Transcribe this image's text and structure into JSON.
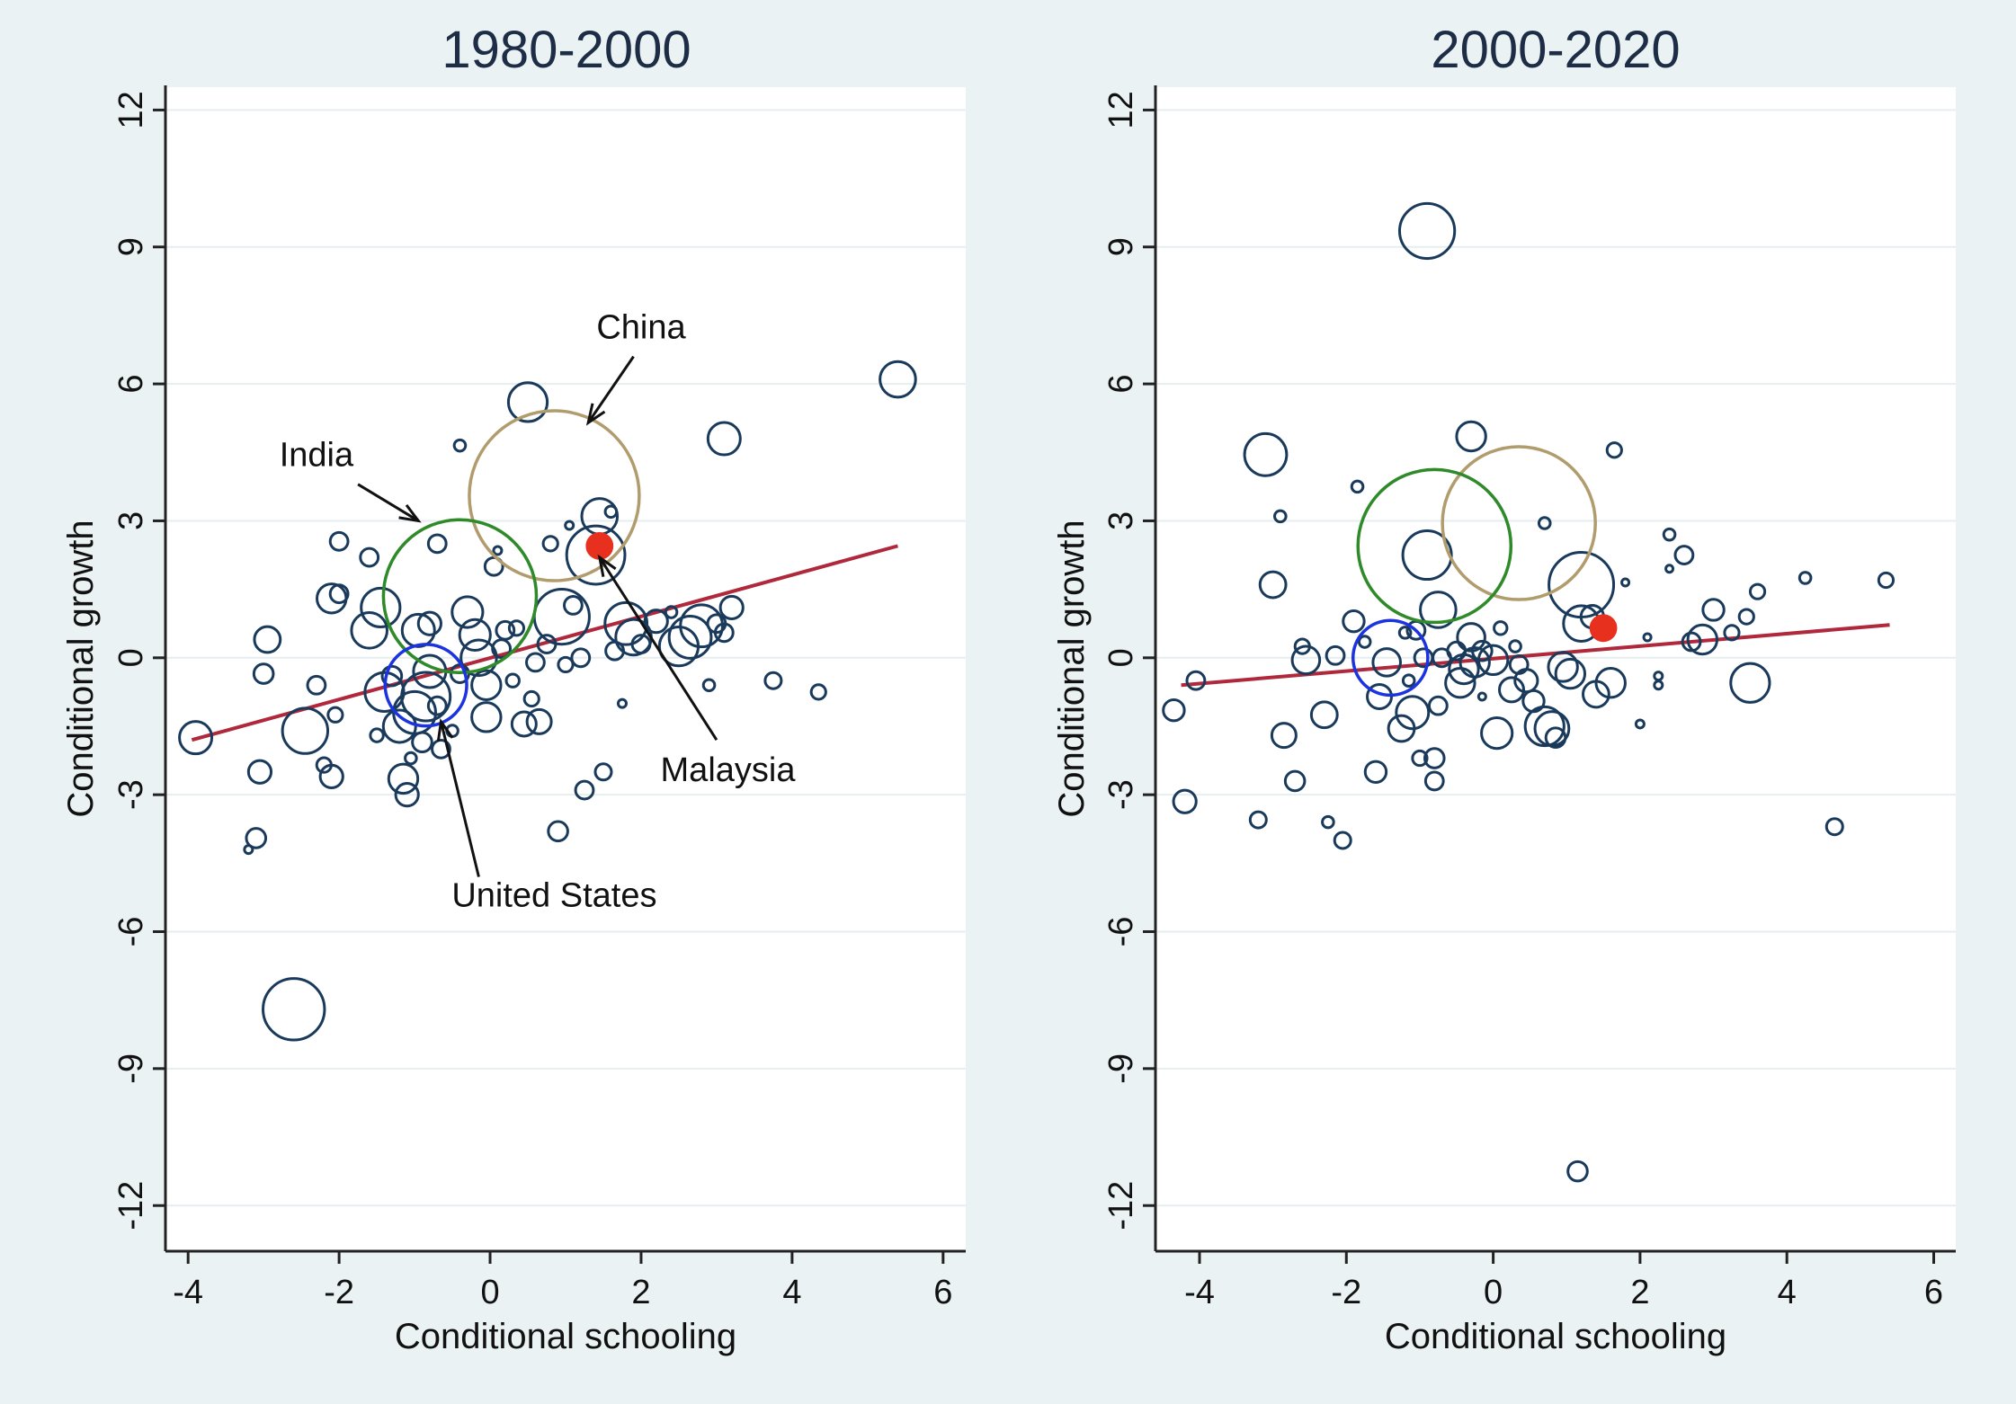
{
  "colors": {
    "background": "#eaf2f3",
    "plot_bg": "#ffffff",
    "grid": "#e6eef0",
    "marker": "#1a3a5c",
    "fit": "#b0283c",
    "china": "#b19c6e",
    "india": "#2f8a2a",
    "united_states": "#1c33e0",
    "malaysia": "#e8301e",
    "title": "#1e2d46"
  },
  "chart_data": [
    {
      "type": "scatter",
      "title": "1980-2000",
      "xlabel": "Conditional schooling",
      "ylabel": "Conditional growth",
      "xlim": [
        -4.3,
        6.3
      ],
      "ylim": [
        -13,
        12.5
      ],
      "xticks": [
        -4,
        -2,
        0,
        2,
        4,
        6
      ],
      "yticks": [
        -12,
        -9,
        -6,
        -3,
        0,
        3,
        6,
        9,
        12
      ],
      "xtick_labels": [
        "-4",
        "-2",
        "0",
        "2",
        "4",
        "6"
      ],
      "ytick_labels": [
        "-12",
        "-9",
        "-6",
        "-3",
        "0",
        "3",
        "6",
        "9",
        "12"
      ],
      "grid": true,
      "fit_line": {
        "x": [
          -3.95,
          5.4
        ],
        "y": [
          -1.8,
          2.45
        ]
      },
      "points": [
        [
          -3.9,
          -1.75,
          1.0
        ],
        [
          -3.2,
          -4.2,
          0.25
        ],
        [
          -3.1,
          -3.95,
          0.6
        ],
        [
          -3.05,
          -2.5,
          0.7
        ],
        [
          -3.0,
          -0.35,
          0.6
        ],
        [
          -2.95,
          0.4,
          0.8
        ],
        [
          -2.6,
          -7.7,
          1.9
        ],
        [
          -2.45,
          -1.6,
          1.4
        ],
        [
          -2.3,
          -0.6,
          0.55
        ],
        [
          -2.2,
          -2.35,
          0.45
        ],
        [
          -2.1,
          -2.6,
          0.7
        ],
        [
          -2.1,
          1.3,
          0.9
        ],
        [
          -2.05,
          -1.25,
          0.45
        ],
        [
          -2.0,
          1.4,
          0.55
        ],
        [
          -2.0,
          2.55,
          0.55
        ],
        [
          -1.6,
          2.2,
          0.55
        ],
        [
          -1.6,
          0.6,
          1.1
        ],
        [
          -1.5,
          -1.7,
          0.4
        ],
        [
          -1.4,
          -0.75,
          1.2
        ],
        [
          -1.45,
          1.1,
          1.2
        ],
        [
          -1.3,
          -0.4,
          0.6
        ],
        [
          -1.2,
          -1.5,
          1.0
        ],
        [
          -1.15,
          -2.65,
          0.9
        ],
        [
          -1.1,
          -3.0,
          0.7
        ],
        [
          -1.05,
          -2.2,
          0.35
        ],
        [
          -1.0,
          -1.2,
          1.3
        ],
        [
          -0.95,
          0.6,
          1.0
        ],
        [
          -0.9,
          -1.85,
          0.6
        ],
        [
          -0.85,
          -0.85,
          1.5
        ],
        [
          -0.8,
          -0.3,
          1.0
        ],
        [
          -0.8,
          0.75,
          0.7
        ],
        [
          -0.7,
          2.5,
          0.55
        ],
        [
          -0.7,
          -1.05,
          0.55
        ],
        [
          -0.65,
          -2.0,
          0.55
        ],
        [
          -0.5,
          -1.6,
          0.35
        ],
        [
          -0.4,
          -0.35,
          0.55
        ],
        [
          -0.4,
          4.65,
          0.35
        ],
        [
          -0.3,
          1.0,
          0.95
        ],
        [
          -0.2,
          0.5,
          0.95
        ],
        [
          -0.15,
          0.0,
          1.1
        ],
        [
          -0.05,
          -0.6,
          0.9
        ],
        [
          -0.05,
          -1.3,
          0.9
        ],
        [
          0.05,
          2.0,
          0.55
        ],
        [
          0.1,
          2.35,
          0.25
        ],
        [
          0.15,
          0.2,
          0.55
        ],
        [
          0.2,
          0.6,
          0.55
        ],
        [
          0.3,
          -0.5,
          0.4
        ],
        [
          0.35,
          0.65,
          0.45
        ],
        [
          0.45,
          -1.45,
          0.75
        ],
        [
          0.5,
          5.6,
          1.2
        ],
        [
          0.55,
          -0.9,
          0.45
        ],
        [
          0.6,
          -0.1,
          0.55
        ],
        [
          0.65,
          -1.4,
          0.75
        ],
        [
          0.75,
          0.3,
          0.55
        ],
        [
          0.8,
          2.5,
          0.45
        ],
        [
          0.95,
          0.9,
          1.7
        ],
        [
          0.9,
          -3.8,
          0.6
        ],
        [
          1.0,
          -0.15,
          0.45
        ],
        [
          1.05,
          2.9,
          0.25
        ],
        [
          1.1,
          1.15,
          0.55
        ],
        [
          1.2,
          0.0,
          0.55
        ],
        [
          1.25,
          -2.9,
          0.55
        ],
        [
          1.4,
          2.25,
          1.8
        ],
        [
          1.45,
          3.1,
          1.1
        ],
        [
          1.5,
          -2.5,
          0.5
        ],
        [
          1.6,
          3.2,
          0.35
        ],
        [
          1.65,
          0.15,
          0.55
        ],
        [
          1.75,
          -1.0,
          0.25
        ],
        [
          1.8,
          0.75,
          1.3
        ],
        [
          1.9,
          0.45,
          1.1
        ],
        [
          2.0,
          0.3,
          0.55
        ],
        [
          2.2,
          0.8,
          0.7
        ],
        [
          2.4,
          1.0,
          0.35
        ],
        [
          2.5,
          0.25,
          1.2
        ],
        [
          2.65,
          0.45,
          1.3
        ],
        [
          2.8,
          0.7,
          1.3
        ],
        [
          2.9,
          -0.6,
          0.35
        ],
        [
          3.0,
          0.75,
          0.55
        ],
        [
          3.1,
          0.55,
          0.55
        ],
        [
          3.2,
          1.1,
          0.7
        ],
        [
          3.1,
          4.8,
          1.0
        ],
        [
          3.75,
          -0.5,
          0.5
        ],
        [
          4.35,
          -0.75,
          0.45
        ],
        [
          5.4,
          6.1,
          1.1
        ]
      ],
      "highlights": [
        {
          "name": "China",
          "x": 0.85,
          "y": 3.55,
          "r": 5.0
        },
        {
          "name": "India",
          "x": -0.4,
          "y": 1.35,
          "r": 4.5
        },
        {
          "name": "United States",
          "x": -0.85,
          "y": -0.6,
          "r": 2.4
        },
        {
          "name": "Malaysia",
          "x": 1.45,
          "y": 2.45,
          "r": 0.8
        }
      ],
      "annotations": [
        {
          "label": "China",
          "tx": 2.0,
          "ty": 7.0,
          "ax": 1.3,
          "ay": 5.15,
          "sx": 1.9,
          "sy": 6.6
        },
        {
          "label": "India",
          "tx": -2.3,
          "ty": 4.2,
          "ax": -0.95,
          "ay": 3.0,
          "sx": -1.75,
          "sy": 3.8
        },
        {
          "label": "Malaysia",
          "tx": 3.15,
          "ty": -2.7,
          "ax": 1.45,
          "ay": 2.2,
          "sx": 3.0,
          "sy": -1.8
        },
        {
          "label": "United States",
          "tx": 0.85,
          "ty": -5.45,
          "ax": -0.65,
          "ay": -1.4,
          "sx": -0.15,
          "sy": -4.8
        }
      ]
    },
    {
      "type": "scatter",
      "title": "2000-2020",
      "xlabel": "Conditional schooling",
      "ylabel": "Conditional growth",
      "xlim": [
        -4.6,
        6.3
      ],
      "ylim": [
        -13,
        12.5
      ],
      "xticks": [
        -4,
        -2,
        0,
        2,
        4,
        6
      ],
      "yticks": [
        -12,
        -9,
        -6,
        -3,
        0,
        3,
        6,
        9,
        12
      ],
      "xtick_labels": [
        "-4",
        "-2",
        "0",
        "2",
        "4",
        "6"
      ],
      "ytick_labels": [
        "-12",
        "-9",
        "-6",
        "-3",
        "0",
        "3",
        "6",
        "9",
        "12"
      ],
      "grid": true,
      "fit_line": {
        "x": [
          -4.25,
          5.4
        ],
        "y": [
          -0.6,
          0.72
        ]
      },
      "points": [
        [
          -4.35,
          -1.15,
          0.65
        ],
        [
          -4.2,
          -3.15,
          0.7
        ],
        [
          -4.05,
          -0.5,
          0.55
        ],
        [
          -3.2,
          -3.55,
          0.5
        ],
        [
          -3.1,
          4.45,
          1.3
        ],
        [
          -3.0,
          1.6,
          0.8
        ],
        [
          -2.9,
          3.1,
          0.35
        ],
        [
          -2.85,
          -1.7,
          0.75
        ],
        [
          -2.7,
          -2.7,
          0.6
        ],
        [
          -2.6,
          0.25,
          0.45
        ],
        [
          -2.55,
          -0.05,
          0.85
        ],
        [
          -2.3,
          -1.25,
          0.8
        ],
        [
          -2.25,
          -3.6,
          0.35
        ],
        [
          -2.15,
          0.05,
          0.55
        ],
        [
          -2.05,
          -4.0,
          0.5
        ],
        [
          -1.9,
          0.8,
          0.65
        ],
        [
          -1.85,
          3.75,
          0.35
        ],
        [
          -1.75,
          0.35,
          0.35
        ],
        [
          -1.6,
          -2.5,
          0.65
        ],
        [
          -1.55,
          -0.85,
          0.75
        ],
        [
          -1.45,
          -0.1,
          0.85
        ],
        [
          -1.25,
          -1.55,
          0.8
        ],
        [
          -1.2,
          0.55,
          0.35
        ],
        [
          -1.15,
          -0.5,
          0.35
        ],
        [
          -1.1,
          -1.2,
          1.0
        ],
        [
          -1.05,
          0.6,
          0.55
        ],
        [
          -1.0,
          -2.2,
          0.45
        ],
        [
          -0.95,
          0.0,
          0.55
        ],
        [
          -0.9,
          2.25,
          1.5
        ],
        [
          -0.9,
          9.35,
          1.7
        ],
        [
          -0.8,
          -2.2,
          0.6
        ],
        [
          -0.8,
          -2.7,
          0.55
        ],
        [
          -0.75,
          -1.05,
          0.55
        ],
        [
          -0.75,
          1.05,
          1.1
        ],
        [
          -0.7,
          0.0,
          0.55
        ],
        [
          -0.5,
          0.15,
          0.55
        ],
        [
          -0.45,
          -0.55,
          0.9
        ],
        [
          -0.4,
          -0.25,
          0.9
        ],
        [
          -0.3,
          0.45,
          0.85
        ],
        [
          -0.3,
          4.85,
          0.9
        ],
        [
          -0.25,
          -0.1,
          0.9
        ],
        [
          -0.15,
          -0.85,
          0.2
        ],
        [
          -0.15,
          0.15,
          0.6
        ],
        [
          0.0,
          -0.05,
          0.9
        ],
        [
          0.05,
          -1.65,
          0.95
        ],
        [
          0.1,
          0.65,
          0.4
        ],
        [
          0.25,
          -0.7,
          0.75
        ],
        [
          0.3,
          0.25,
          0.35
        ],
        [
          0.35,
          -0.15,
          0.55
        ],
        [
          0.45,
          -0.5,
          0.7
        ],
        [
          0.55,
          -0.95,
          0.65
        ],
        [
          0.7,
          -1.5,
          1.2
        ],
        [
          0.7,
          2.95,
          0.35
        ],
        [
          0.8,
          -1.55,
          1.05
        ],
        [
          0.85,
          -1.75,
          0.6
        ],
        [
          0.95,
          -0.2,
          0.9
        ],
        [
          1.05,
          -0.35,
          0.9
        ],
        [
          1.15,
          -11.25,
          0.6
        ],
        [
          1.2,
          1.6,
          2.0
        ],
        [
          1.2,
          0.75,
          1.1
        ],
        [
          1.35,
          0.9,
          0.7
        ],
        [
          1.4,
          -0.8,
          0.8
        ],
        [
          1.6,
          -0.55,
          0.9
        ],
        [
          1.65,
          4.55,
          0.45
        ],
        [
          1.8,
          1.65,
          0.2
        ],
        [
          2.0,
          -1.45,
          0.25
        ],
        [
          2.1,
          0.45,
          0.2
        ],
        [
          2.25,
          -0.4,
          0.25
        ],
        [
          2.25,
          -0.6,
          0.25
        ],
        [
          2.4,
          2.7,
          0.35
        ],
        [
          2.4,
          1.95,
          0.2
        ],
        [
          2.6,
          2.25,
          0.55
        ],
        [
          2.7,
          0.35,
          0.55
        ],
        [
          2.85,
          0.4,
          0.9
        ],
        [
          3.0,
          1.05,
          0.65
        ],
        [
          3.25,
          0.55,
          0.45
        ],
        [
          3.45,
          0.9,
          0.45
        ],
        [
          3.5,
          -0.55,
          1.2
        ],
        [
          3.6,
          1.45,
          0.45
        ],
        [
          4.25,
          1.75,
          0.35
        ],
        [
          4.65,
          -3.7,
          0.5
        ],
        [
          5.35,
          1.7,
          0.45
        ]
      ],
      "highlights": [
        {
          "name": "China",
          "x": 0.35,
          "y": 2.95,
          "r": 4.5
        },
        {
          "name": "India",
          "x": -0.8,
          "y": 2.45,
          "r": 4.5
        },
        {
          "name": "United States",
          "x": -1.4,
          "y": 0.0,
          "r": 2.2
        },
        {
          "name": "Malaysia",
          "x": 1.5,
          "y": 0.65,
          "r": 0.8
        }
      ]
    }
  ]
}
